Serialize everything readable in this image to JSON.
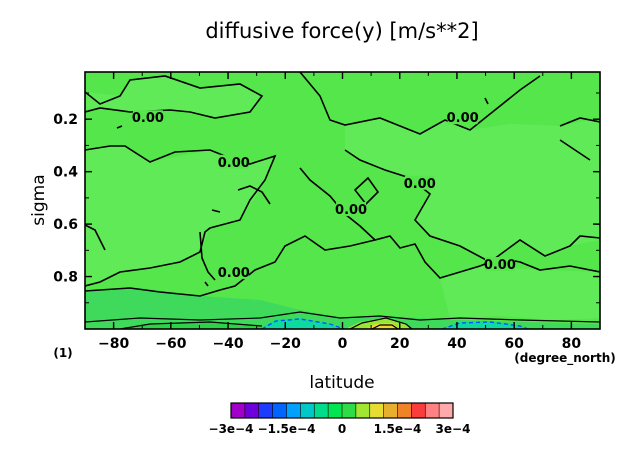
{
  "chart_data": {
    "type": "contour",
    "title": "diffusive force(y) [m/s**2]",
    "xlabel": "latitude",
    "ylabel": "sigma",
    "x_unit": "(degree_north)",
    "panel_label": "(1)",
    "xlim": [
      -90,
      90
    ],
    "ylim": [
      1.0,
      0.02
    ],
    "x_ticks": [
      -80,
      -60,
      -40,
      -20,
      0,
      20,
      40,
      60,
      80
    ],
    "x_tick_labels": [
      "−80",
      "−60",
      "−40",
      "−20",
      "0",
      "20",
      "40",
      "60",
      "80"
    ],
    "y_ticks": [
      0.2,
      0.4,
      0.6,
      0.8
    ],
    "y_tick_labels": [
      "0.2",
      "0.4",
      "0.6",
      "0.8"
    ],
    "contour_labels": [
      {
        "text": "0.00",
        "lat": -68,
        "sigma": 0.2
      },
      {
        "text": "0.00",
        "lat": 42,
        "sigma": 0.2
      },
      {
        "text": "0.00",
        "lat": -38,
        "sigma": 0.37
      },
      {
        "text": "0.00",
        "lat": 27,
        "sigma": 0.45
      },
      {
        "text": "0.00",
        "lat": 3,
        "sigma": 0.55
      },
      {
        "text": "0.00",
        "lat": 55,
        "sigma": 0.76
      },
      {
        "text": "0.00",
        "lat": -38,
        "sigma": 0.79
      }
    ],
    "colorbar": {
      "colors": [
        "#a000c8",
        "#6e00dc",
        "#1e3cff",
        "#0064ff",
        "#00a0ff",
        "#00c8c8",
        "#00dc8c",
        "#00e650",
        "#2ddc46",
        "#a0e632",
        "#e6dc32",
        "#e6af2d",
        "#f08228",
        "#fa3c3c",
        "#ff8282",
        "#ffaaaa"
      ],
      "tick_labels": [
        "−3e−4",
        "−1.5e−4",
        "0",
        "1.5e−4",
        "3e−4"
      ],
      "range": [
        -0.0003,
        0.0003
      ]
    }
  }
}
